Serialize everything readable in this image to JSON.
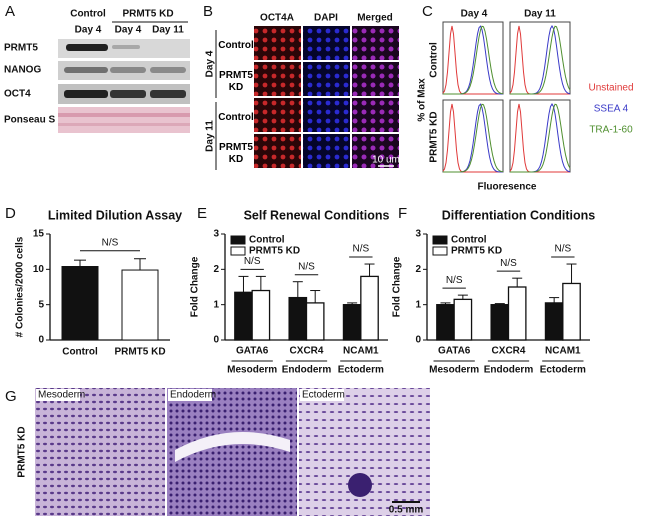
{
  "panel_letters": [
    "A",
    "B",
    "C",
    "D",
    "E",
    "F",
    "G"
  ],
  "blot": {
    "groups": [
      "Control",
      "PRMT5 KD"
    ],
    "lanes": [
      "Day 4",
      "Day 4",
      "Day 11"
    ],
    "rows": [
      "PRMT5",
      "NANOG",
      "OCT4",
      "Ponseau S"
    ]
  },
  "imaging": {
    "columns": [
      "OCT4A",
      "DAPI",
      "Merged"
    ],
    "timepoints": [
      "Day 4",
      "Day 11"
    ],
    "rows": [
      "Control",
      "PRMT5 KD",
      "Control",
      "PRMT5 KD"
    ],
    "scale_bar": "10 um"
  },
  "flow": {
    "timepoints": [
      "Day 4",
      "Day 11"
    ],
    "y_label": "% of Max",
    "rows": [
      "Control",
      "PRMT5 KD"
    ],
    "x_label": "Fluoresence",
    "legend": [
      {
        "name": "Unstained",
        "color": "#e03a3a"
      },
      {
        "name": "SSEA 4",
        "color": "#3a3ac8"
      },
      {
        "name": "TRA-1-60",
        "color": "#4f8f2f"
      }
    ]
  },
  "histology": {
    "row_label": "PRMT5 KD",
    "panels": [
      "Mesoderm",
      "Endoderm",
      "Ectoderm"
    ],
    "scale_bar": "0.5 mm"
  },
  "chart_data": [
    {
      "type": "bar",
      "title": "Limited Dilution Assay",
      "y_label": "# Colonies/2000 cells",
      "categories": [
        "Control",
        "PRMT5 KD"
      ],
      "values": [
        10.4,
        9.9
      ],
      "errors": [
        0.9,
        1.6
      ],
      "colors": [
        "#111111",
        "#ffffff"
      ],
      "annotations": [
        "N/S"
      ],
      "ylim": [
        0,
        15
      ],
      "yticks": [
        0,
        5,
        10,
        15
      ]
    },
    {
      "type": "grouped_bar",
      "title": "Self Renewal Conditions",
      "y_label": "Fold Change",
      "categories": [
        "GATA6",
        "CXCR4",
        "NCAM1"
      ],
      "group_labels": [
        "Mesoderm",
        "Endoderm",
        "Ectoderm"
      ],
      "series": [
        {
          "name": "Control",
          "color": "#111111",
          "values": [
            1.35,
            1.2,
            1.0
          ],
          "errors": [
            0.45,
            0.45,
            0.05
          ]
        },
        {
          "name": "PRMT5 KD",
          "color": "#ffffff",
          "values": [
            1.4,
            1.05,
            1.8
          ],
          "errors": [
            0.4,
            0.35,
            0.35
          ]
        }
      ],
      "annotations": [
        "N/S",
        "N/S",
        "N/S"
      ],
      "ylim": [
        0,
        3
      ],
      "yticks": [
        0,
        1,
        2,
        3
      ]
    },
    {
      "type": "grouped_bar",
      "title": "Differentiation Conditions",
      "y_label": "Fold Change",
      "categories": [
        "GATA6",
        "CXCR4",
        "NCAM1"
      ],
      "group_labels": [
        "Mesoderm",
        "Endoderm",
        "Ectoderm"
      ],
      "series": [
        {
          "name": "Control",
          "color": "#111111",
          "values": [
            1.0,
            1.0,
            1.05
          ],
          "errors": [
            0.05,
            0.03,
            0.15
          ]
        },
        {
          "name": "PRMT5 KD",
          "color": "#ffffff",
          "values": [
            1.15,
            1.5,
            1.6
          ],
          "errors": [
            0.12,
            0.25,
            0.55
          ]
        }
      ],
      "annotations": [
        "N/S",
        "N/S",
        "N/S"
      ],
      "ylim": [
        0,
        3
      ],
      "yticks": [
        0,
        1,
        2,
        3
      ]
    }
  ]
}
